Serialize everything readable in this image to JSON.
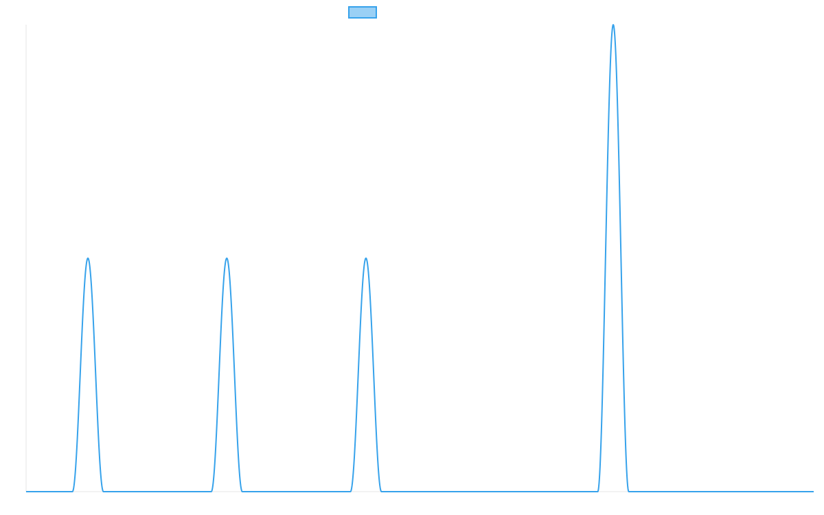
{
  "chart_data": {
    "type": "line",
    "title": "",
    "xlabel": "",
    "ylabel": "",
    "legend": {
      "position": "top-center",
      "entries": [
        {
          "label": "",
          "color": "#36A2EB",
          "fill": "#9AD0F5"
        }
      ]
    },
    "grid": false,
    "xlim": [
      0,
      1
    ],
    "ylim": [
      0,
      1
    ],
    "series": [
      {
        "name": "",
        "color": "#36A2EB",
        "peaks": [
          {
            "center": 0.0785,
            "height": 0.5,
            "halfwidth": 0.0197
          },
          {
            "center": 0.2548,
            "height": 0.5,
            "halfwidth": 0.0197
          },
          {
            "center": 0.4315,
            "height": 0.5,
            "halfwidth": 0.0197
          },
          {
            "center": 0.7455,
            "height": 1.0,
            "halfwidth": 0.0197
          }
        ],
        "baseline": 0
      }
    ]
  }
}
